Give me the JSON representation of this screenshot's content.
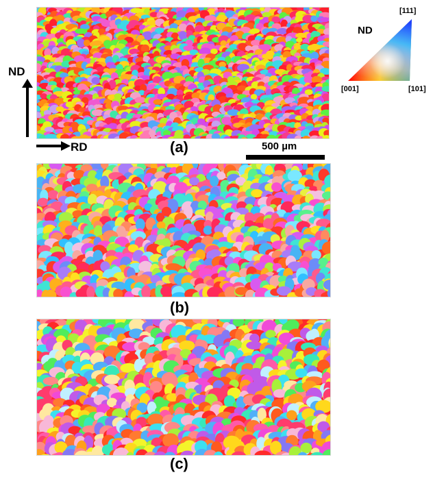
{
  "figure": {
    "panels": [
      {
        "label": "(a)",
        "id": "a",
        "palette": [
          "#ff1f2e",
          "#ff3b1c",
          "#ff2a5a",
          "#ff5a1e",
          "#f83a8c",
          "#ff8a14",
          "#ffb020",
          "#ffd21c",
          "#e8f01a",
          "#b6ee28",
          "#5cf044",
          "#3ee8a6",
          "#3cd8e8",
          "#54a8f8",
          "#9a6cf4",
          "#d44ae8",
          "#f05ad0",
          "#ff7ab4",
          "#f4a0c8",
          "#c8a0f0"
        ]
      },
      {
        "label": "(b)",
        "id": "b",
        "palette": [
          "#ff3a2a",
          "#ff6a20",
          "#ffb01c",
          "#ffe020",
          "#ff5a8c",
          "#f850d0",
          "#d85af0",
          "#a87cf8",
          "#6c8cf8",
          "#48b4f4",
          "#40e4d4",
          "#58f08c",
          "#a8f040",
          "#e8f040",
          "#ff2a5a",
          "#ff8a60",
          "#f8a8a0",
          "#f4c0e0",
          "#7ae8ff",
          "#30c0ff"
        ]
      },
      {
        "label": "(c)",
        "id": "c",
        "palette": [
          "#ff2a2a",
          "#ff5a1e",
          "#ffa01c",
          "#ffd81c",
          "#f4f42a",
          "#a8f03a",
          "#50ec5c",
          "#38e8b8",
          "#3ce0f0",
          "#50b0f8",
          "#8478f4",
          "#c05ae8",
          "#f04ad8",
          "#ff5aa8",
          "#ff8888",
          "#f8b8d8",
          "#ffe8a0",
          "#c0f0ff",
          "#ff3c6c",
          "#ff7a30"
        ]
      }
    ],
    "axes": {
      "nd_label": "ND",
      "rd_label": "RD"
    },
    "scale_bar_label": "500 µm",
    "ipf_legend": {
      "title": "ND",
      "corner_111": "[111]",
      "corner_001": "[001]",
      "corner_101": "[101]",
      "corner_colors": {
        "001": "#ff0000",
        "101": "#00ff00",
        "111": "#0000ff"
      }
    }
  }
}
